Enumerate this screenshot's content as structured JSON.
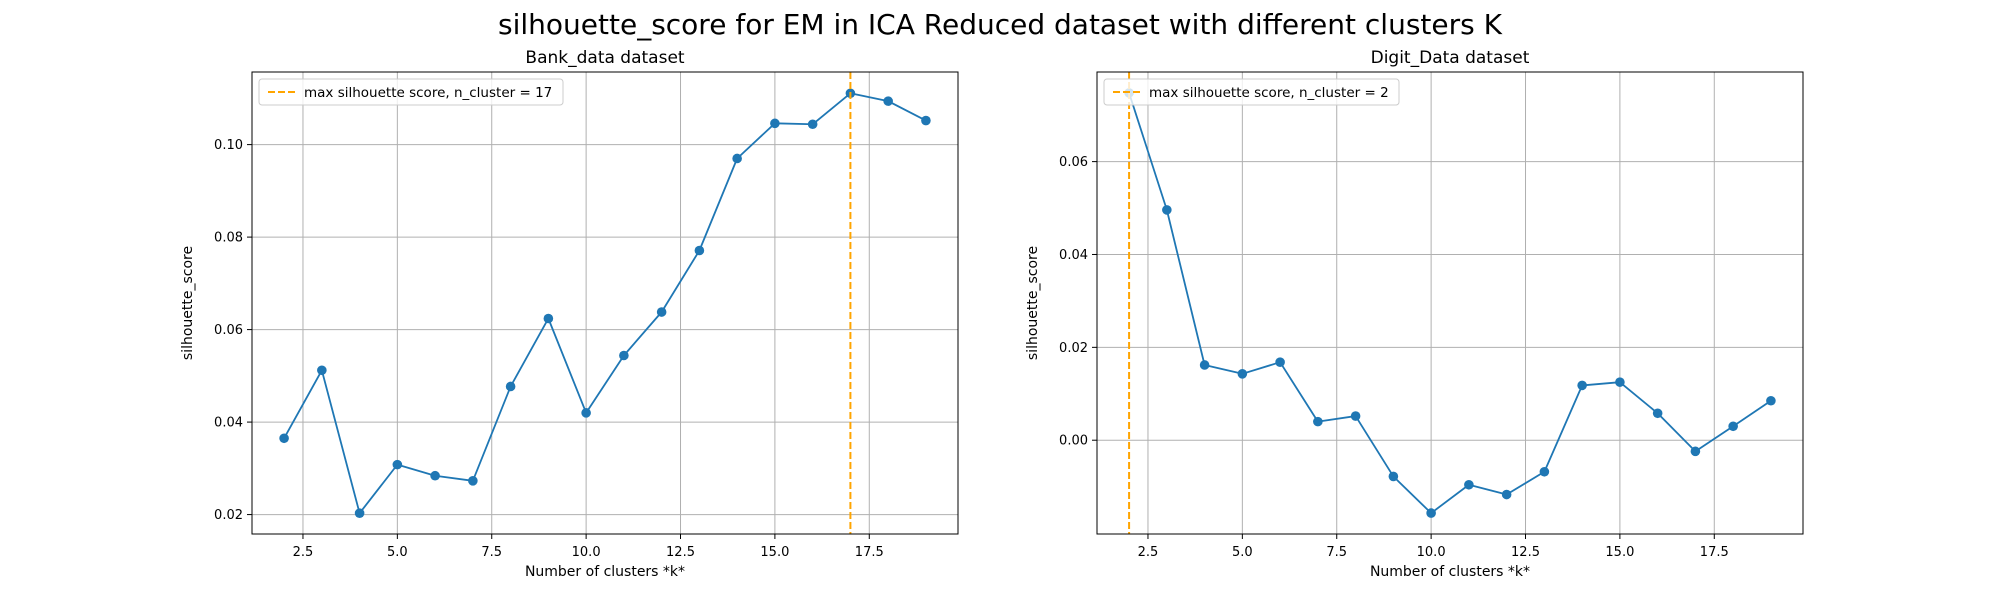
{
  "figure": {
    "suptitle": "silhouette_score for EM in ICA Reduced dataset with different clusters K"
  },
  "colors": {
    "series": "#1f77b4",
    "max_line": "#ffa500",
    "grid": "#b0b0b0"
  },
  "chart_data": [
    {
      "type": "line",
      "title": "Bank_data dataset",
      "xlabel": "Number of clusters *k*",
      "ylabel": "silhouette_score",
      "x": [
        2,
        3,
        4,
        5,
        6,
        7,
        8,
        9,
        10,
        11,
        12,
        13,
        14,
        15,
        16,
        17,
        18,
        19
      ],
      "y": [
        0.0365,
        0.0512,
        0.0203,
        0.0308,
        0.0284,
        0.0273,
        0.0477,
        0.0624,
        0.042,
        0.0544,
        0.0638,
        0.0771,
        0.097,
        0.1046,
        0.1044,
        0.1111,
        0.1094,
        0.1052
      ],
      "xlim": [
        1.15,
        19.85
      ],
      "ylim": [
        0.0158,
        0.1157
      ],
      "xticks": [
        2.5,
        5.0,
        7.5,
        10.0,
        12.5,
        15.0,
        17.5
      ],
      "xtick_labels": [
        "2.5",
        "5.0",
        "7.5",
        "10.0",
        "12.5",
        "15.0",
        "17.5"
      ],
      "yticks": [
        0.02,
        0.04,
        0.06,
        0.08,
        0.1
      ],
      "ytick_labels": [
        "0.02",
        "0.04",
        "0.06",
        "0.08",
        "0.10"
      ],
      "grid": true,
      "max_line_x": 17,
      "legend": {
        "label": "max silhouette score, n_cluster = 17",
        "placement": "upper-left"
      }
    },
    {
      "type": "line",
      "title": "Digit_Data dataset",
      "xlabel": "Number of clusters *k*",
      "ylabel": "silhouette_score",
      "x": [
        2,
        3,
        4,
        5,
        6,
        7,
        8,
        9,
        10,
        11,
        12,
        13,
        14,
        15,
        16,
        17,
        18,
        19
      ],
      "y": [
        0.0748,
        0.0496,
        0.0162,
        0.0143,
        0.0168,
        0.004,
        0.0052,
        -0.0078,
        -0.0157,
        -0.0096,
        -0.0117,
        -0.0068,
        0.0118,
        0.0125,
        0.0058,
        -0.0024,
        0.003,
        0.0085
      ],
      "xlim": [
        1.15,
        19.85
      ],
      "ylim": [
        -0.0202,
        0.0793
      ],
      "xticks": [
        2.5,
        5.0,
        7.5,
        10.0,
        12.5,
        15.0,
        17.5
      ],
      "xtick_labels": [
        "2.5",
        "5.0",
        "7.5",
        "10.0",
        "12.5",
        "15.0",
        "17.5"
      ],
      "yticks": [
        0.0,
        0.02,
        0.04,
        0.06
      ],
      "ytick_labels": [
        "0.00",
        "0.02",
        "0.04",
        "0.06"
      ],
      "grid": true,
      "max_line_x": 2,
      "legend": {
        "label": "max silhouette score, n_cluster = 2",
        "placement": "upper-left"
      }
    }
  ]
}
